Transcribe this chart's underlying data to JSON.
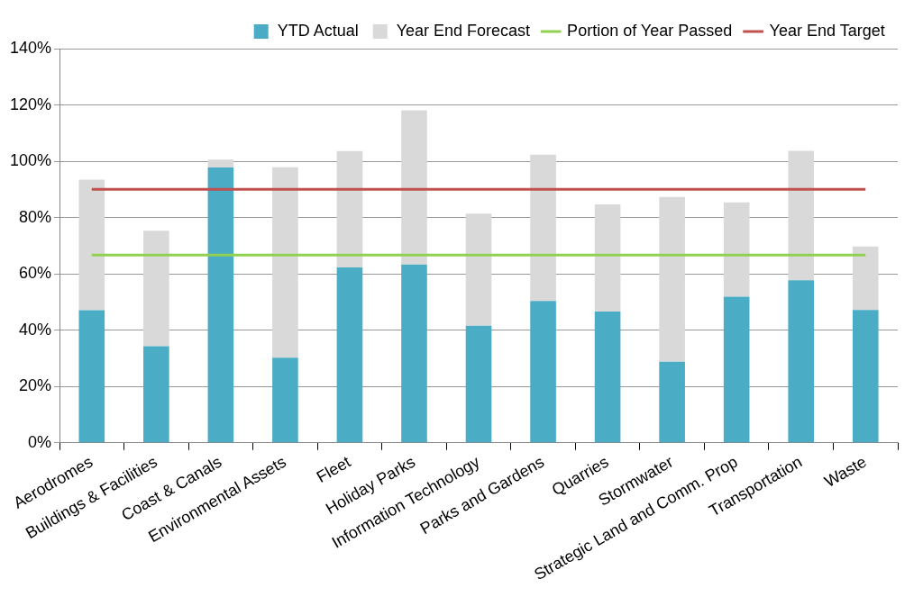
{
  "chart_data": {
    "type": "bar",
    "stacked": true,
    "categories": [
      "Aerodromes",
      "Buildings & Facilities",
      "Coast & Canals",
      "Environmental Assets",
      "Fleet",
      "Holiday Parks",
      "Information Technology",
      "Parks and Gardens",
      "Quarries",
      "Stormwater",
      "Strategic Land and Comm. Prop",
      "Transportation",
      "Waste"
    ],
    "series": [
      {
        "name": "YTD Actual",
        "color": "#4bacc6",
        "values": [
          47.1,
          34.3,
          97.8,
          30.2,
          62.3,
          63.3,
          41.6,
          50.4,
          46.6,
          28.8,
          51.9,
          57.7,
          47.2
        ]
      },
      {
        "name": "Year End Forecast",
        "color": "#d9d9d9",
        "values": [
          46.4,
          41.0,
          2.8,
          67.7,
          41.3,
          54.8,
          39.8,
          51.9,
          38.1,
          58.5,
          33.5,
          46.0,
          22.5
        ]
      },
      {
        "name": "Portion of Year Passed",
        "type": "line",
        "color": "#92d050",
        "values": [
          66.7,
          66.7,
          66.7,
          66.7,
          66.7,
          66.7,
          66.7,
          66.7,
          66.7,
          66.7,
          66.7,
          66.7,
          66.7
        ]
      },
      {
        "name": "Year End Target",
        "type": "line",
        "color": "#c0504d",
        "values": [
          90,
          90,
          90,
          90,
          90,
          90,
          90,
          90,
          90,
          90,
          90,
          90,
          90
        ]
      }
    ],
    "ylim": [
      0,
      140
    ],
    "yticks": [
      {
        "value": 0,
        "label": "0%"
      },
      {
        "value": 20,
        "label": "20%"
      },
      {
        "value": 40,
        "label": "40%"
      },
      {
        "value": 60,
        "label": "60%"
      },
      {
        "value": 80,
        "label": "80%"
      },
      {
        "value": 100,
        "label": "100%"
      },
      {
        "value": 120,
        "label": "120%"
      },
      {
        "value": 140,
        "label": "140%"
      }
    ],
    "grid": "y",
    "legend": "top right",
    "marker": "none"
  }
}
